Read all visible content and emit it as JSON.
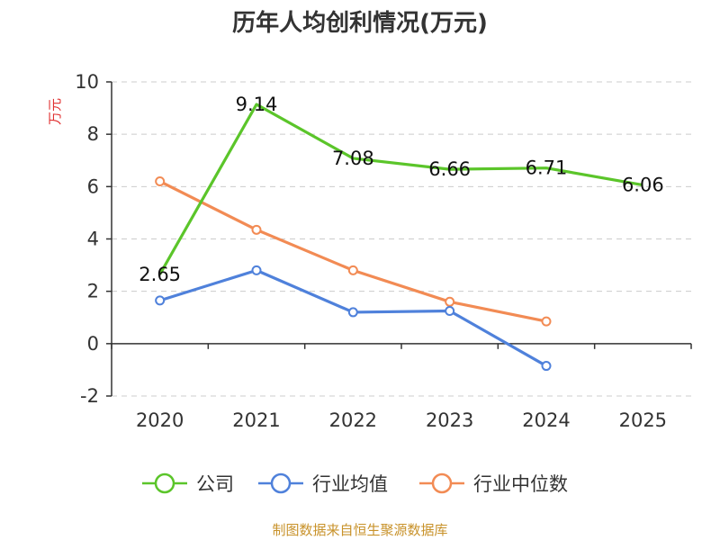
{
  "chart_data": {
    "type": "line",
    "title": "历年人均创利情况(万元)",
    "ylabel": "万元",
    "xlabel": "",
    "categories": [
      "2020",
      "2021",
      "2022",
      "2023",
      "2024",
      "2025"
    ],
    "ylim": [
      -2,
      10
    ],
    "yticks": [
      -2,
      0,
      2,
      4,
      6,
      8,
      10
    ],
    "grid": true,
    "legend_position": "bottom-center",
    "series": [
      {
        "name": "公司",
        "color": "#5bc52a",
        "values": [
          2.65,
          9.14,
          7.08,
          6.66,
          6.71,
          6.06
        ],
        "show_labels": true,
        "show_markers": false
      },
      {
        "name": "行业均值",
        "color": "#4f81db",
        "values": [
          1.65,
          2.8,
          1.2,
          1.25,
          -0.85,
          null
        ],
        "show_labels": false,
        "show_markers": true
      },
      {
        "name": "行业中位数",
        "color": "#f28b54",
        "values": [
          6.2,
          4.35,
          2.8,
          1.6,
          0.85,
          null
        ],
        "show_labels": false,
        "show_markers": true
      }
    ]
  },
  "colors": {
    "ylabel": "#e03030",
    "source": "#c8922a"
  },
  "source": "制图数据来自恒生聚源数据库"
}
